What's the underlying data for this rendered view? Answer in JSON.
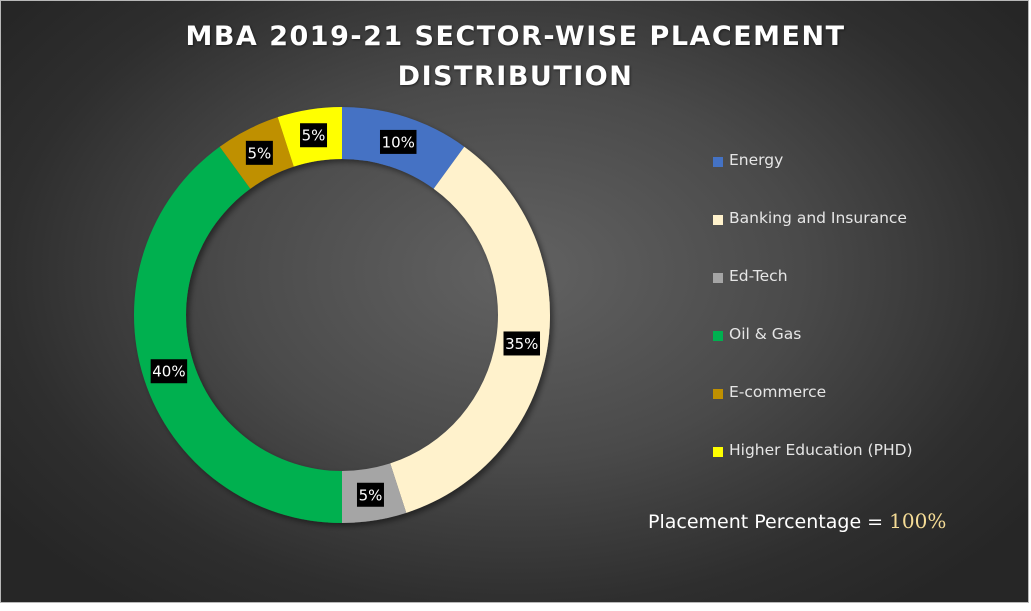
{
  "chart_data": {
    "type": "pie",
    "title": "MBA 2019-21 SECTOR-WISE PLACEMENT DISTRIBUTION",
    "title_lines": [
      "MBA 2019-21 SECTOR-WISE PLACEMENT",
      "DISTRIBUTION"
    ],
    "style": "donut",
    "legend_position": "right",
    "categories": [
      "Energy",
      "Banking and Insurance",
      "Ed-Tech",
      "Oil & Gas",
      "E-commerce",
      "Higher Education (PHD)"
    ],
    "values": [
      10,
      35,
      5,
      40,
      5,
      5
    ],
    "data_labels": [
      "10%",
      "35%",
      "5%",
      "40%",
      "5%",
      "5%"
    ],
    "colors": [
      "#4472c4",
      "#fff2cc",
      "#a5a5a5",
      "#00b050",
      "#bf9000",
      "#ffff00"
    ]
  },
  "annotation": {
    "label": "Placement Percentage = ",
    "value": "100%"
  }
}
